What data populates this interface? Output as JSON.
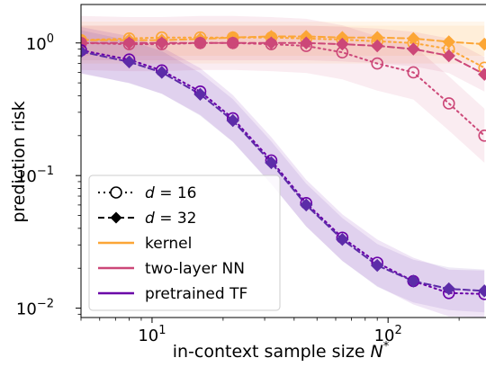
{
  "chart_data": {
    "type": "line",
    "title": "",
    "xlabel": "in-context sample size N*",
    "xlabel_main": "in-context sample size ",
    "xlabel_symbol": "N",
    "xlabel_sup": "*",
    "ylabel": "prediction risk",
    "x_scale": "log",
    "y_scale": "log",
    "xlim": [
      5,
      260
    ],
    "ylim": [
      0.0085,
      1.95
    ],
    "x_ticks": [
      {
        "value": 10,
        "base": "10",
        "exp": "1"
      },
      {
        "value": 100,
        "base": "10",
        "exp": "2"
      }
    ],
    "y_ticks": [
      {
        "value": 0.01,
        "base": "10",
        "exp": "−2"
      },
      {
        "value": 0.1,
        "base": "10",
        "exp": "−1"
      },
      {
        "value": 1,
        "base": "10",
        "exp": "0"
      }
    ],
    "grid": false,
    "legend_position": "lower-left",
    "colors": {
      "kernel": "#fca636",
      "two_layer_nn": "#e16462",
      "pretrained_tf": "#6a00a8"
    },
    "x": [
      5,
      8,
      11,
      16,
      22,
      32,
      45,
      64,
      90,
      128,
      181,
      256
    ],
    "series": [
      {
        "name": "kernel",
        "variant": "d = 16",
        "color": "#fca636",
        "marker": "circle",
        "dash": "dotted",
        "values": [
          1.05,
          1.08,
          1.1,
          1.1,
          1.1,
          1.1,
          1.08,
          1.06,
          1.03,
          1.0,
          0.9,
          0.65
        ],
        "band": [
          0.7,
          1.45
        ]
      },
      {
        "name": "kernel",
        "variant": "d = 32",
        "color": "#fca636",
        "marker": "diamond",
        "dash": "dashed",
        "values": [
          1.05,
          1.05,
          1.05,
          1.07,
          1.1,
          1.12,
          1.12,
          1.1,
          1.1,
          1.08,
          1.02,
          0.98
        ],
        "band": [
          0.8,
          1.35
        ]
      },
      {
        "name": "two-layer NN",
        "variant": "d = 16",
        "color": "#cc4778",
        "marker": "circle",
        "dash": "dotted",
        "values": [
          1.0,
          0.98,
          0.98,
          1.0,
          1.0,
          0.98,
          0.95,
          0.85,
          0.7,
          0.6,
          0.35,
          0.2
        ],
        "band_ratio": 1.6
      },
      {
        "name": "two-layer NN",
        "variant": "d = 32",
        "color": "#cc4778",
        "marker": "diamond",
        "dash": "dashed",
        "values": [
          1.0,
          1.0,
          1.0,
          1.0,
          1.0,
          1.0,
          1.0,
          0.98,
          0.95,
          0.9,
          0.8,
          0.58
        ],
        "band_ratio": 1.35
      },
      {
        "name": "pretrained TF",
        "variant": "d = 16",
        "color": "#6a00a8",
        "marker": "circle",
        "dash": "dotted",
        "values": [
          0.88,
          0.75,
          0.62,
          0.43,
          0.27,
          0.13,
          0.062,
          0.034,
          0.022,
          0.016,
          0.013,
          0.0128
        ],
        "band_ratio": 1.5
      },
      {
        "name": "pretrained TF",
        "variant": "d = 32",
        "color": "#5c2ca8",
        "marker": "diamond",
        "dash": "dashed",
        "values": [
          0.86,
          0.72,
          0.6,
          0.41,
          0.26,
          0.125,
          0.06,
          0.033,
          0.021,
          0.016,
          0.014,
          0.0135
        ],
        "band_ratio": 1.45
      }
    ],
    "legend": [
      {
        "label_symbol": "d",
        "label_rest": " = 16",
        "kind": "marker",
        "marker": "circle",
        "dash": "dotted",
        "color": "#000000"
      },
      {
        "label_symbol": "d",
        "label_rest": " = 32",
        "kind": "marker",
        "marker": "diamond",
        "dash": "dashed",
        "color": "#000000"
      },
      {
        "label": "kernel",
        "kind": "line",
        "color": "#fca636"
      },
      {
        "label": "two-layer NN",
        "kind": "line",
        "color": "#cc4778"
      },
      {
        "label": "pretrained TF",
        "kind": "line",
        "color": "#6a00a8"
      }
    ]
  }
}
